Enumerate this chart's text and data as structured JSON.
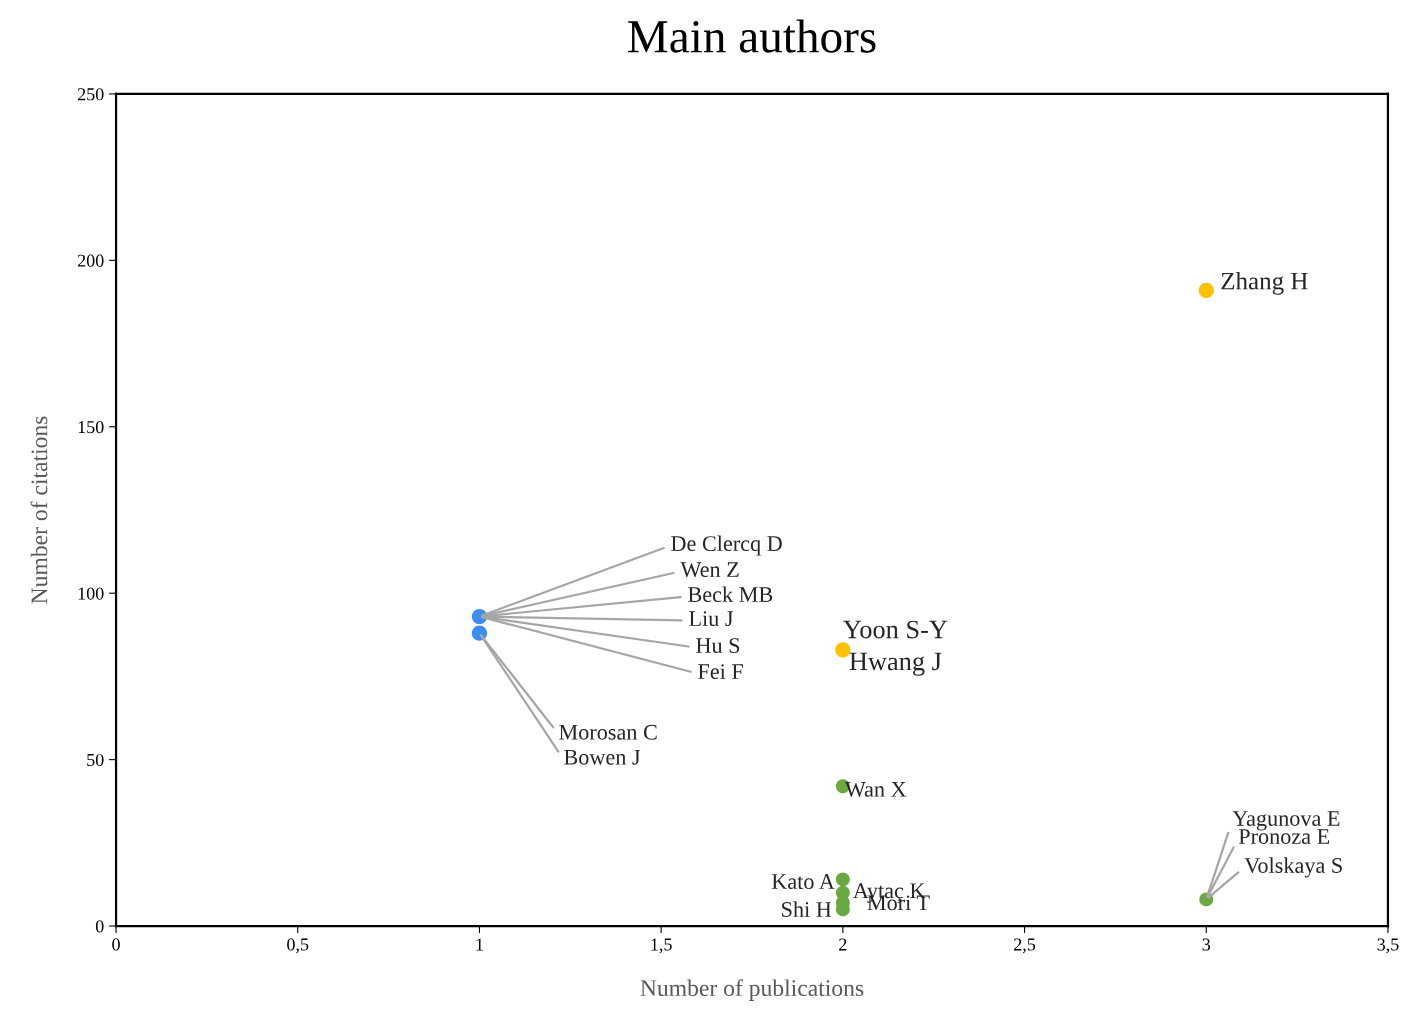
{
  "chart_data": {
    "type": "scatter",
    "title": "Main authors",
    "xlabel": "Number of publications",
    "ylabel": "Number of citations",
    "xlim": [
      0,
      3.5
    ],
    "ylim": [
      0,
      250
    ],
    "xticks": [
      0,
      {
        "value": 0.5,
        "label": "0,5"
      },
      1,
      {
        "value": 1.5,
        "label": "1,5"
      },
      2,
      {
        "value": 2.5,
        "label": "2,5"
      },
      3,
      {
        "value": 3.5,
        "label": "3,5"
      }
    ],
    "yticks": [
      0,
      50,
      100,
      150,
      200,
      250
    ],
    "grid": false,
    "marker": "circle",
    "series": [
      {
        "color": "#3c8ef0",
        "x": [
          1,
          1
        ],
        "values": [
          93,
          88
        ]
      },
      {
        "color": "#ffc000",
        "x": [
          2,
          3
        ],
        "values": [
          83,
          191
        ]
      },
      {
        "color": "#6aa842",
        "x": [
          2,
          2,
          2,
          2,
          2,
          3
        ],
        "values": [
          42,
          14,
          10,
          7,
          5,
          8
        ]
      }
    ],
    "annotations": [
      {
        "text": "De Clercq D",
        "x": 1,
        "y": 93
      },
      {
        "text": "Wen Z",
        "x": 1,
        "y": 93
      },
      {
        "text": "Beck MB",
        "x": 1,
        "y": 93
      },
      {
        "text": "Liu J",
        "x": 1,
        "y": 93
      },
      {
        "text": "Hu S",
        "x": 1,
        "y": 93
      },
      {
        "text": "Fei F",
        "x": 1,
        "y": 93
      },
      {
        "text": "Morosan C",
        "x": 1,
        "y": 88
      },
      {
        "text": "Bowen J",
        "x": 1,
        "y": 88
      },
      {
        "text": "Yoon S-Y",
        "x": 2,
        "y": 83
      },
      {
        "text": "Hwang J",
        "x": 2,
        "y": 83
      },
      {
        "text": "Zhang H",
        "x": 3,
        "y": 191
      },
      {
        "text": "Wan X",
        "x": 2,
        "y": 42
      },
      {
        "text": "Kato A",
        "x": 2,
        "y": 14
      },
      {
        "text": "Aytaç K",
        "x": 2,
        "y": 10
      },
      {
        "text": "Mori T",
        "x": 2,
        "y": 7
      },
      {
        "text": "Shi H",
        "x": 2,
        "y": 5
      },
      {
        "text": "Yagunova E",
        "x": 3,
        "y": 8
      },
      {
        "text": "Pronoza E",
        "x": 3,
        "y": 8
      },
      {
        "text": "Volskaya S",
        "x": 3,
        "y": 8
      }
    ]
  }
}
